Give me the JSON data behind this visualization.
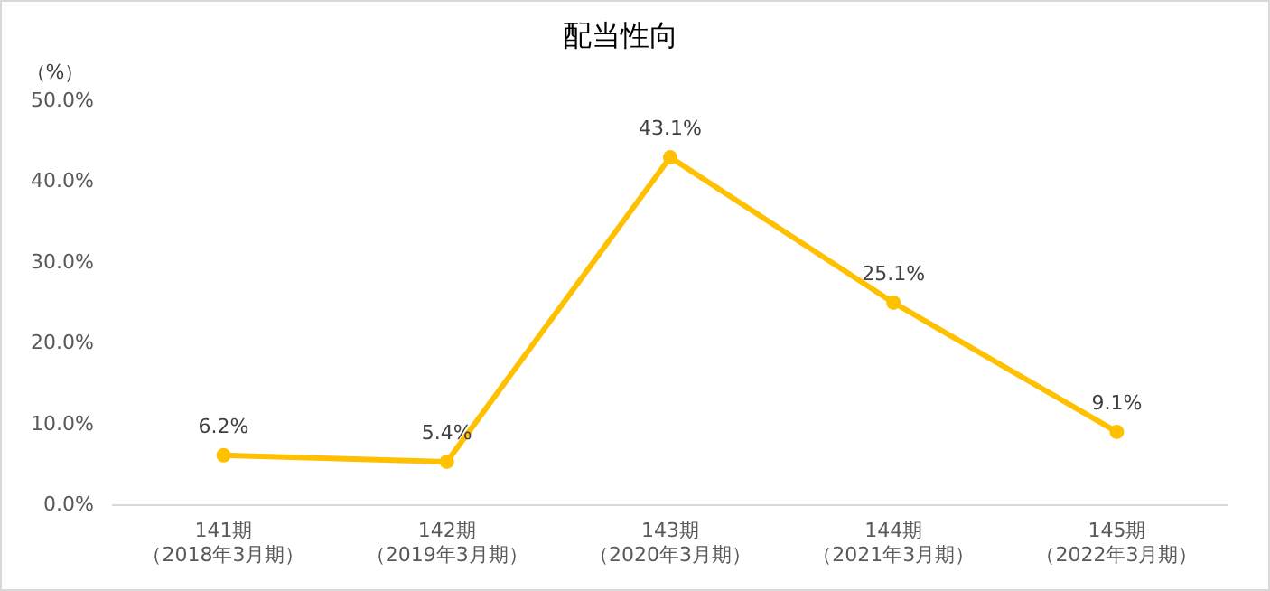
{
  "chart_data": {
    "type": "line",
    "title": "配当性向",
    "ylabel": "（%）",
    "categories": [
      "141期（2018年3月期）",
      "142期（2019年3月期）",
      "143期（2020年3月期）",
      "144期（2021年3月期）",
      "145期（2022年3月期）"
    ],
    "series": [
      {
        "color": "#ffc000",
        "values": [
          6.2,
          5.4,
          43.1,
          25.1,
          9.1
        ],
        "value_labels": [
          "6.2%",
          "5.4%",
          "43.1%",
          "25.1%",
          "9.1%"
        ]
      }
    ],
    "ylim": [
      0,
      50
    ],
    "yticks": [
      {
        "value": 0,
        "label": "0.0%"
      },
      {
        "value": 10,
        "label": "10.0%"
      },
      {
        "value": 20,
        "label": "20.0%"
      },
      {
        "value": 30,
        "label": "30.0%"
      },
      {
        "value": 40,
        "label": "40.0%"
      },
      {
        "value": 50,
        "label": "50.0%"
      }
    ],
    "grid": false,
    "legend": false,
    "marker": "circle",
    "line_style": "solid"
  }
}
